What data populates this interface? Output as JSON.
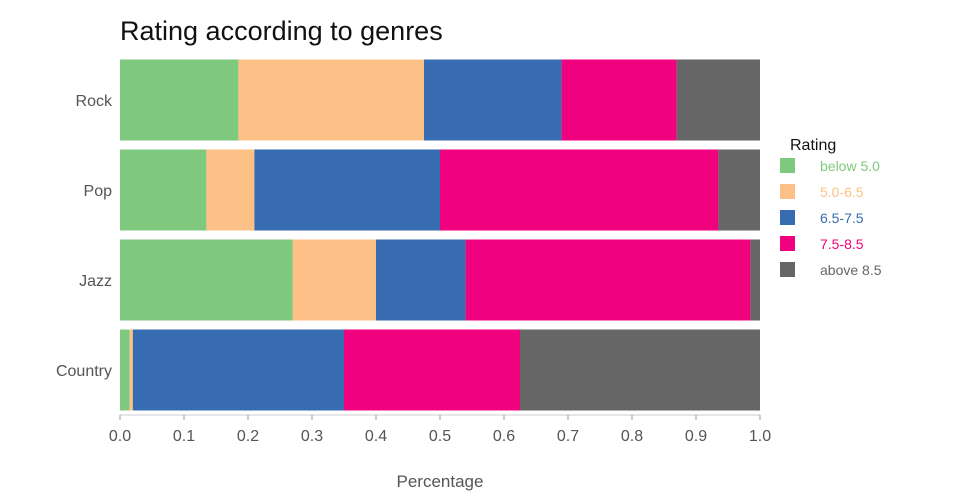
{
  "chart_data": {
    "type": "bar",
    "orientation": "horizontal",
    "stacked": true,
    "title": "Rating according to genres",
    "xlabel": "Percentage",
    "ylabel": "",
    "xlim": [
      0,
      1.0
    ],
    "x_ticks": [
      "0.0",
      "0.1",
      "0.2",
      "0.3",
      "0.4",
      "0.5",
      "0.6",
      "0.7",
      "0.8",
      "0.9",
      "1.0"
    ],
    "grid": false,
    "categories": [
      "Rock",
      "Pop",
      "Jazz",
      "Country"
    ],
    "legend": {
      "title": "Rating",
      "position": "right"
    },
    "series": [
      {
        "name": "below 5.0",
        "color": "#7fc97f",
        "values": [
          0.185,
          0.135,
          0.27,
          0.015
        ]
      },
      {
        "name": "5.0-6.5",
        "color": "#fdc086",
        "values": [
          0.29,
          0.075,
          0.13,
          0.005
        ]
      },
      {
        "name": "6.5-7.5",
        "color": "#386cb0",
        "values": [
          0.215,
          0.29,
          0.14,
          0.33
        ]
      },
      {
        "name": "7.5-8.5",
        "color": "#f0027f",
        "values": [
          0.18,
          0.435,
          0.445,
          0.275
        ]
      },
      {
        "name": "above 8.5",
        "color": "#666666",
        "values": [
          0.13,
          0.065,
          0.015,
          0.375
        ]
      }
    ]
  }
}
